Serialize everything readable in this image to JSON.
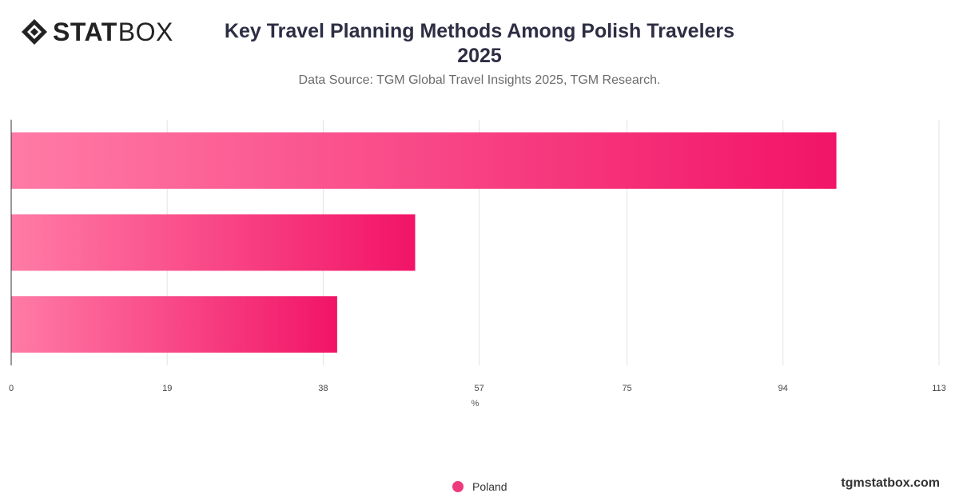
{
  "header": {
    "logo_stat": "STAT",
    "logo_box": "BOX",
    "title_line1": "Key Travel Planning Methods Among Polish Travelers",
    "title_line2": "2025",
    "subtitle": "Data Source: TGM Global Travel Insights 2025, TGM Research."
  },
  "footer": {
    "site": "tgmstatbox.com"
  },
  "colors": {
    "bar_start": "#ff7ba6",
    "bar_end": "#f21467",
    "legend": "#ee3a7d"
  },
  "chart_data": {
    "type": "bar",
    "orientation": "horizontal",
    "categories": [
      "",
      "",
      ""
    ],
    "series": [
      {
        "name": "Poland",
        "values": [
          100.5,
          49.2,
          39.7
        ]
      }
    ],
    "xlabel": "%",
    "xlim": [
      0,
      113
    ],
    "xticks": [
      0,
      19,
      38,
      57,
      75,
      94,
      113
    ],
    "grid": true,
    "legend_position": "bottom-center"
  }
}
